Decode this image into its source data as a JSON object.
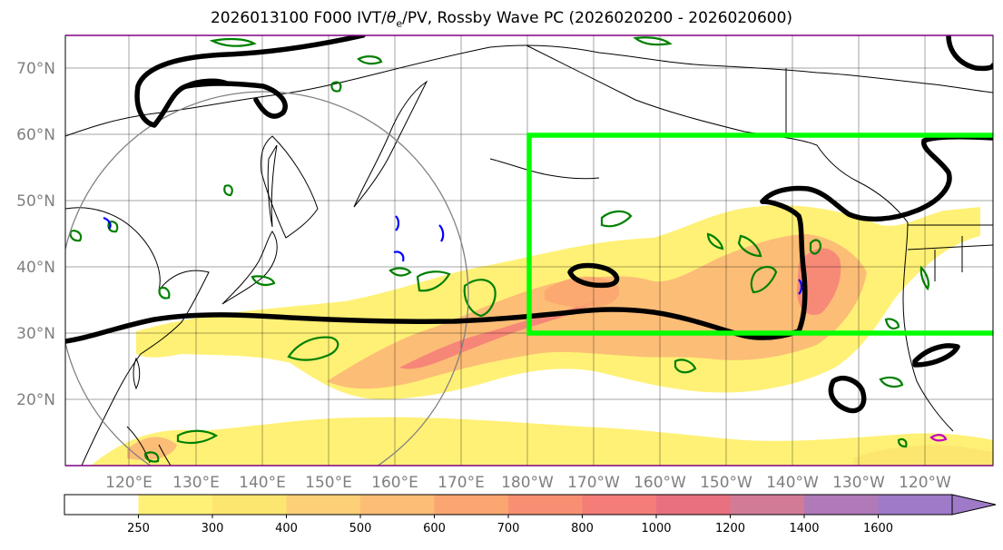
{
  "title": {
    "prefix": "2026013100 F000 IVT/",
    "theta": "θ",
    "theta_sub": "e",
    "suffix": "/PV, Rossby Wave PC (2026020200 - 2026020600)"
  },
  "lat_labels": [
    "70°N",
    "60°N",
    "50°N",
    "40°N",
    "30°N",
    "20°N"
  ],
  "lon_labels": [
    "120°E",
    "130°E",
    "140°E",
    "150°E",
    "160°E",
    "170°E",
    "180°W",
    "170°W",
    "160°W",
    "150°W",
    "140°W",
    "130°W",
    "120°W"
  ],
  "colorbar": {
    "levels": [
      "250",
      "300",
      "400",
      "500",
      "600",
      "700",
      "800",
      "1000",
      "1200",
      "1400",
      "1600"
    ],
    "colors": [
      "#ffffff",
      "#fff176",
      "#fde66f",
      "#fdd077",
      "#fcbd76",
      "#fba671",
      "#f98f72",
      "#f47d78",
      "#e8717f",
      "#d27b96",
      "#b079b8",
      "#9e7ac8"
    ]
  },
  "colors": {
    "ivt_light": "#fff176",
    "ivt_mid": "#fcbd76",
    "ivt_high": "#f47d78",
    "box": "#00ff00",
    "pv_contour": "#000000",
    "theta_green": "#008000",
    "theta_blue": "#0000ff"
  },
  "icons": {
    "region_box": "target-region-box",
    "rossby_circle": "radius-circle"
  }
}
